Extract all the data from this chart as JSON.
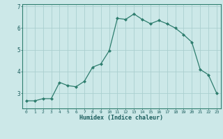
{
  "x": [
    0,
    1,
    2,
    3,
    4,
    5,
    6,
    7,
    8,
    9,
    10,
    11,
    12,
    13,
    14,
    15,
    16,
    17,
    18,
    19,
    20,
    21,
    22,
    23
  ],
  "y": [
    2.65,
    2.65,
    2.75,
    2.75,
    3.5,
    3.35,
    3.3,
    3.55,
    4.2,
    4.35,
    4.95,
    6.45,
    6.4,
    6.65,
    6.4,
    6.2,
    6.35,
    6.2,
    6.0,
    5.7,
    5.35,
    4.1,
    3.85,
    3.0
  ],
  "line_color": "#2e7d6e",
  "marker": "D",
  "marker_size": 2.0,
  "bg_color": "#cce8e8",
  "grid_color": "#aacfcf",
  "xlabel": "Humidex (Indice chaleur)",
  "xlabel_color": "#1a5c5c",
  "tick_color": "#1a5c5c",
  "spine_color": "#2e7d6e",
  "ylim": [
    2.3,
    7.1
  ],
  "xlim": [
    -0.5,
    23.5
  ],
  "yticks": [
    3,
    4,
    5,
    6,
    7
  ],
  "xticks": [
    0,
    1,
    2,
    3,
    4,
    5,
    6,
    7,
    8,
    9,
    10,
    11,
    12,
    13,
    14,
    15,
    16,
    17,
    18,
    19,
    20,
    21,
    22,
    23
  ]
}
